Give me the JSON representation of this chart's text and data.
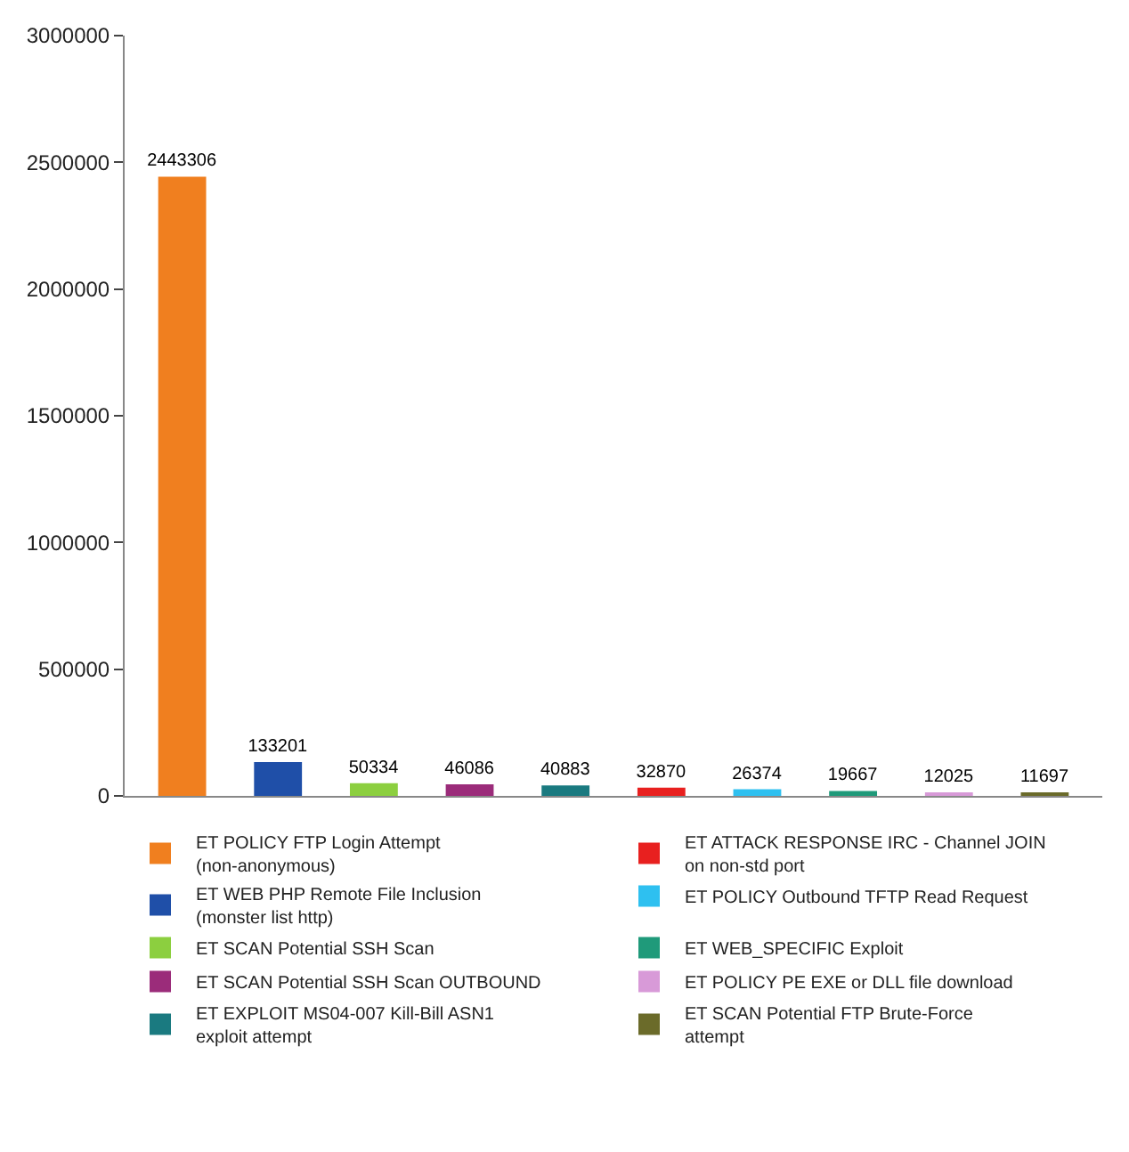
{
  "chart_data": {
    "type": "bar",
    "categories": [
      null,
      null,
      null,
      null,
      null,
      null,
      null,
      null,
      null,
      null
    ],
    "series": [
      {
        "name": "ET POLICY FTP Login Attempt (non-anonymous)",
        "color": "#f07f1f",
        "values": [
          2443306,
          null,
          null,
          null,
          null,
          null,
          null,
          null,
          null,
          null
        ]
      },
      {
        "name": "ET WEB PHP Remote File Inclusion (monster list http)",
        "color": "#1f4fa8",
        "values": [
          null,
          133201,
          null,
          null,
          null,
          null,
          null,
          null,
          null,
          null
        ]
      },
      {
        "name": "ET SCAN Potential SSH Scan",
        "color": "#8ccf3f",
        "values": [
          null,
          null,
          50334,
          null,
          null,
          null,
          null,
          null,
          null,
          null
        ]
      },
      {
        "name": "ET SCAN Potential SSH Scan OUTBOUND",
        "color": "#9b2c7a",
        "values": [
          null,
          null,
          null,
          46086,
          null,
          null,
          null,
          null,
          null,
          null
        ]
      },
      {
        "name": "ET EXPLOIT MS04-007 Kill-Bill ASN1 exploit attempt",
        "color": "#1a7a80",
        "values": [
          null,
          null,
          null,
          null,
          40883,
          null,
          null,
          null,
          null,
          null
        ]
      },
      {
        "name": "ET ATTACK RESPONSE IRC - Channel JOIN on non-std port",
        "color": "#e8201f",
        "values": [
          null,
          null,
          null,
          null,
          null,
          32870,
          null,
          null,
          null,
          null
        ]
      },
      {
        "name": "ET POLICY Outbound TFTP Read Request",
        "color": "#2ec0f0",
        "values": [
          null,
          null,
          null,
          null,
          null,
          null,
          26374,
          null,
          null,
          null
        ]
      },
      {
        "name": "ET WEB_SPECIFIC Exploit",
        "color": "#1f9a7a",
        "values": [
          null,
          null,
          null,
          null,
          null,
          null,
          null,
          19667,
          null,
          null
        ]
      },
      {
        "name": "ET POLICY PE EXE or DLL file download",
        "color": "#d89ad8",
        "values": [
          null,
          null,
          null,
          null,
          null,
          null,
          null,
          null,
          12025,
          null
        ]
      },
      {
        "name": "ET SCAN Potential FTP Brute-Force attempt",
        "color": "#6b6b2a",
        "values": [
          null,
          null,
          null,
          null,
          null,
          null,
          null,
          null,
          null,
          11697
        ]
      }
    ],
    "ylim": [
      0,
      3000000
    ],
    "yticks": [
      0,
      500000,
      1000000,
      1500000,
      2000000,
      2500000,
      3000000
    ],
    "data_labels": true,
    "legend": "bottom",
    "tick_labels": "y"
  }
}
